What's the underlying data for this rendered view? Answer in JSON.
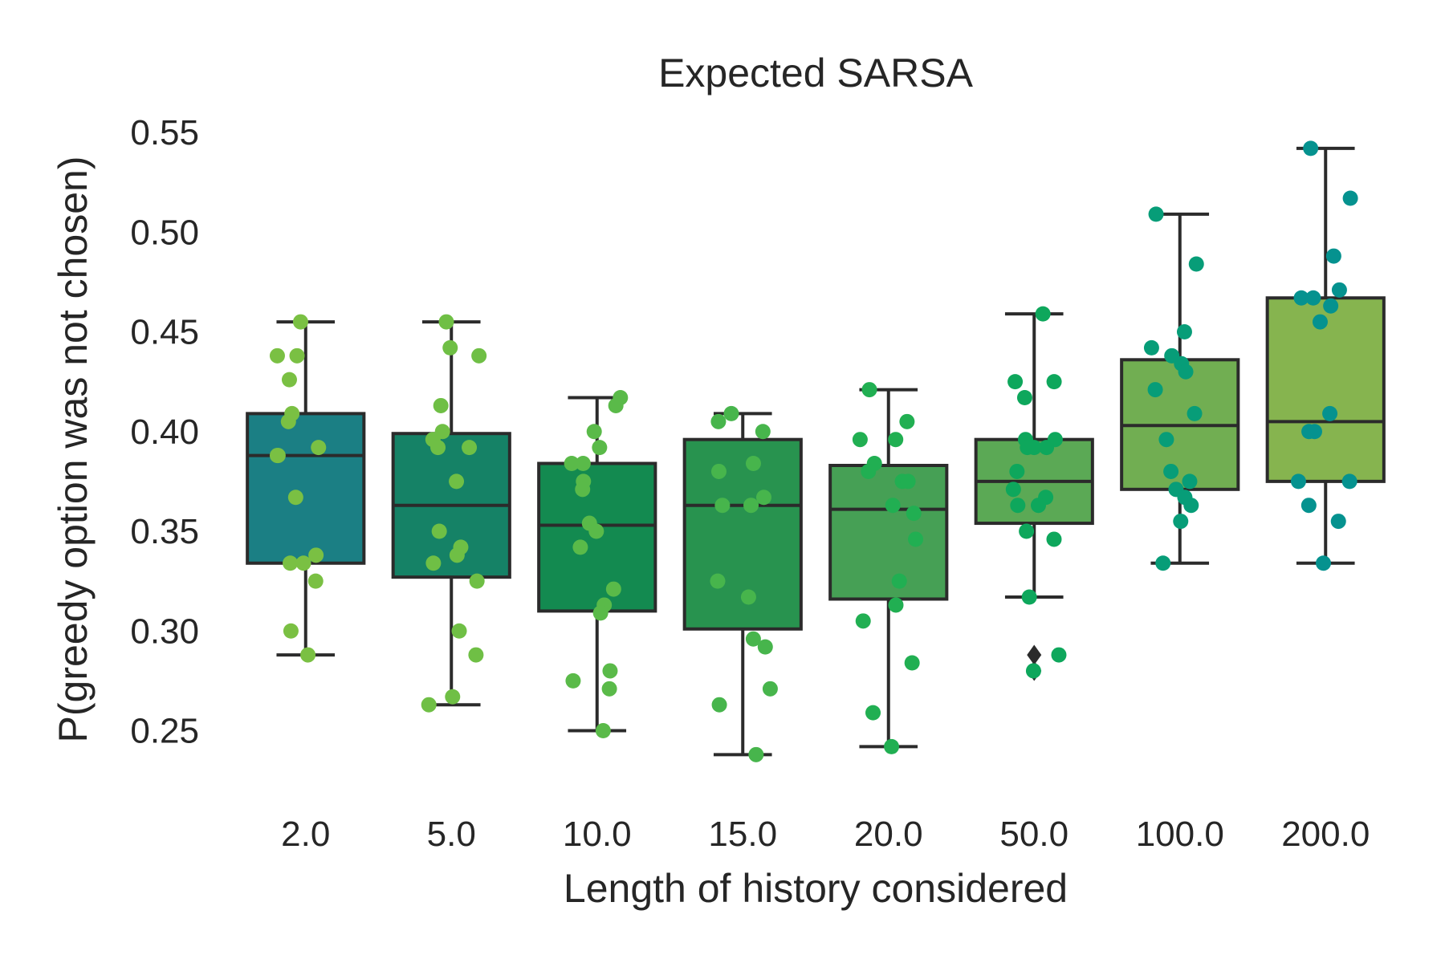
{
  "chart_data": {
    "type": "box",
    "title": "Expected SARSA",
    "xlabel": "Length of history considered",
    "ylabel": "P(greedy option was not chosen)",
    "ylim": [
      0.215,
      0.56
    ],
    "yticks": [
      0.25,
      0.3,
      0.35,
      0.4,
      0.45,
      0.5,
      0.55
    ],
    "ytick_labels": [
      "0.25",
      "0.30",
      "0.35",
      "0.40",
      "0.45",
      "0.50",
      "0.55"
    ],
    "grid": false,
    "legend": "none",
    "categories": [
      "2.0",
      "5.0",
      "10.0",
      "15.0",
      "20.0",
      "50.0",
      "100.0",
      "200.0"
    ],
    "boxes": [
      {
        "q1": 0.334,
        "median": 0.388,
        "q3": 0.409,
        "whisker_low": 0.288,
        "whisker_high": 0.455,
        "outliers": [],
        "box_color": "#1b7f84",
        "point_color": "#7ac043"
      },
      {
        "q1": 0.327,
        "median": 0.363,
        "q3": 0.399,
        "whisker_low": 0.263,
        "whisker_high": 0.455,
        "outliers": [],
        "box_color": "#158266",
        "point_color": "#6fbf45"
      },
      {
        "q1": 0.31,
        "median": 0.353,
        "q3": 0.384,
        "whisker_low": 0.25,
        "whisker_high": 0.417,
        "outliers": [],
        "box_color": "#138a50",
        "point_color": "#5aba49"
      },
      {
        "q1": 0.301,
        "median": 0.363,
        "q3": 0.396,
        "whisker_low": 0.238,
        "whisker_high": 0.409,
        "outliers": [],
        "box_color": "#28934f",
        "point_color": "#47b54c"
      },
      {
        "q1": 0.316,
        "median": 0.361,
        "q3": 0.383,
        "whisker_low": 0.242,
        "whisker_high": 0.421,
        "outliers": [],
        "box_color": "#46a055",
        "point_color": "#21af52"
      },
      {
        "q1": 0.354,
        "median": 0.375,
        "q3": 0.396,
        "whisker_low": 0.317,
        "whisker_high": 0.459,
        "outliers": [
          0.288,
          0.28
        ],
        "box_color": "#5ba955",
        "point_color": "#0ea75c"
      },
      {
        "q1": 0.371,
        "median": 0.403,
        "q3": 0.436,
        "whisker_low": 0.334,
        "whisker_high": 0.509,
        "outliers": [],
        "box_color": "#71ae52",
        "point_color": "#079d78"
      },
      {
        "q1": 0.375,
        "median": 0.405,
        "q3": 0.467,
        "whisker_low": 0.334,
        "whisker_high": 0.542,
        "outliers": [],
        "box_color": "#86b44f",
        "point_color": "#05928f"
      }
    ],
    "points": [
      [
        0.455,
        0.438,
        0.438,
        0.426,
        0.409,
        0.405,
        0.392,
        0.388,
        0.388,
        0.367,
        0.338,
        0.334,
        0.334,
        0.325,
        0.3,
        0.288
      ],
      [
        0.455,
        0.442,
        0.438,
        0.413,
        0.4,
        0.396,
        0.392,
        0.392,
        0.375,
        0.35,
        0.342,
        0.338,
        0.334,
        0.325,
        0.3,
        0.288,
        0.267,
        0.263
      ],
      [
        0.417,
        0.413,
        0.4,
        0.392,
        0.384,
        0.384,
        0.375,
        0.371,
        0.354,
        0.35,
        0.342,
        0.321,
        0.313,
        0.309,
        0.28,
        0.275,
        0.271,
        0.25
      ],
      [
        0.409,
        0.405,
        0.4,
        0.384,
        0.38,
        0.367,
        0.363,
        0.363,
        0.325,
        0.317,
        0.296,
        0.292,
        0.271,
        0.263,
        0.238
      ],
      [
        0.421,
        0.405,
        0.396,
        0.396,
        0.384,
        0.38,
        0.375,
        0.375,
        0.363,
        0.359,
        0.346,
        0.325,
        0.313,
        0.305,
        0.284,
        0.259,
        0.242
      ],
      [
        0.459,
        0.425,
        0.425,
        0.417,
        0.396,
        0.396,
        0.392,
        0.392,
        0.392,
        0.38,
        0.371,
        0.367,
        0.363,
        0.363,
        0.35,
        0.346,
        0.317,
        0.288,
        0.28
      ],
      [
        0.509,
        0.484,
        0.45,
        0.442,
        0.438,
        0.434,
        0.43,
        0.421,
        0.409,
        0.396,
        0.38,
        0.375,
        0.371,
        0.367,
        0.363,
        0.355,
        0.334
      ],
      [
        0.542,
        0.517,
        0.488,
        0.471,
        0.467,
        0.467,
        0.463,
        0.455,
        0.409,
        0.4,
        0.4,
        0.375,
        0.375,
        0.363,
        0.355,
        0.334
      ]
    ]
  }
}
